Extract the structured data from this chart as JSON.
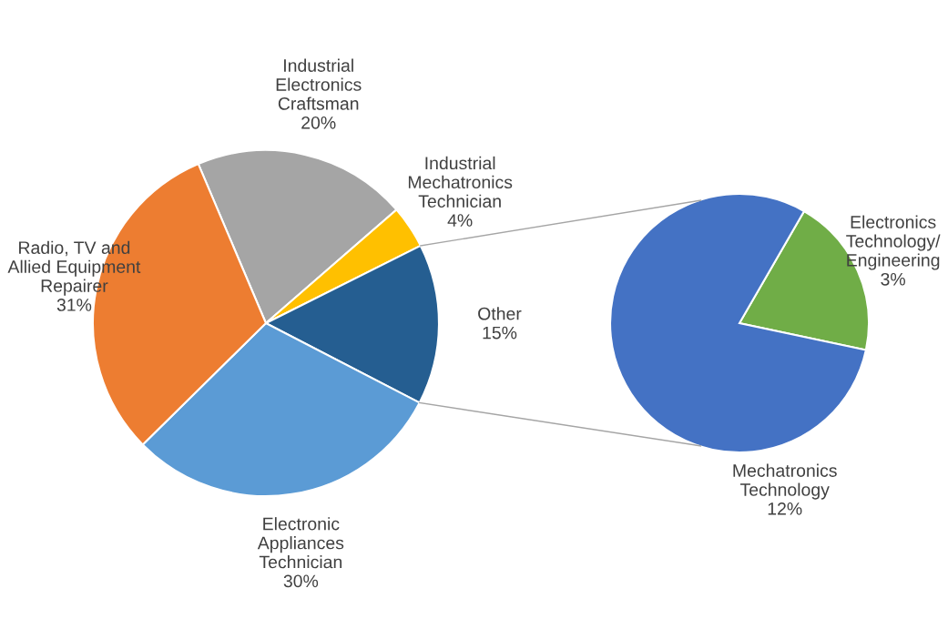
{
  "chart_data": [
    {
      "type": "pie",
      "categories": [
        "Industrial\nElectronics\nCraftsman",
        "Industrial\nMechatronics\nTechnician",
        "Other",
        "Electronic\nAppliances\nTechnician",
        "Radio, TV and\nAllied Equipment\nRepairer"
      ],
      "values": [
        20,
        4,
        15,
        30,
        31
      ],
      "value_labels": [
        "20%",
        "4%",
        "15%",
        "30%",
        "31%"
      ],
      "colors": [
        "#a5a5a5",
        "#ffc000",
        "#255e91",
        "#5b9bd5",
        "#ed7d31"
      ]
    },
    {
      "type": "pie",
      "categories": [
        "Electronics\nTechnology/\nEngineering",
        "Mechatronics\nTechnology"
      ],
      "values": [
        3,
        12
      ],
      "value_labels": [
        "3%",
        "12%"
      ],
      "colors": [
        "#70ad47",
        "#4472c4"
      ]
    }
  ]
}
